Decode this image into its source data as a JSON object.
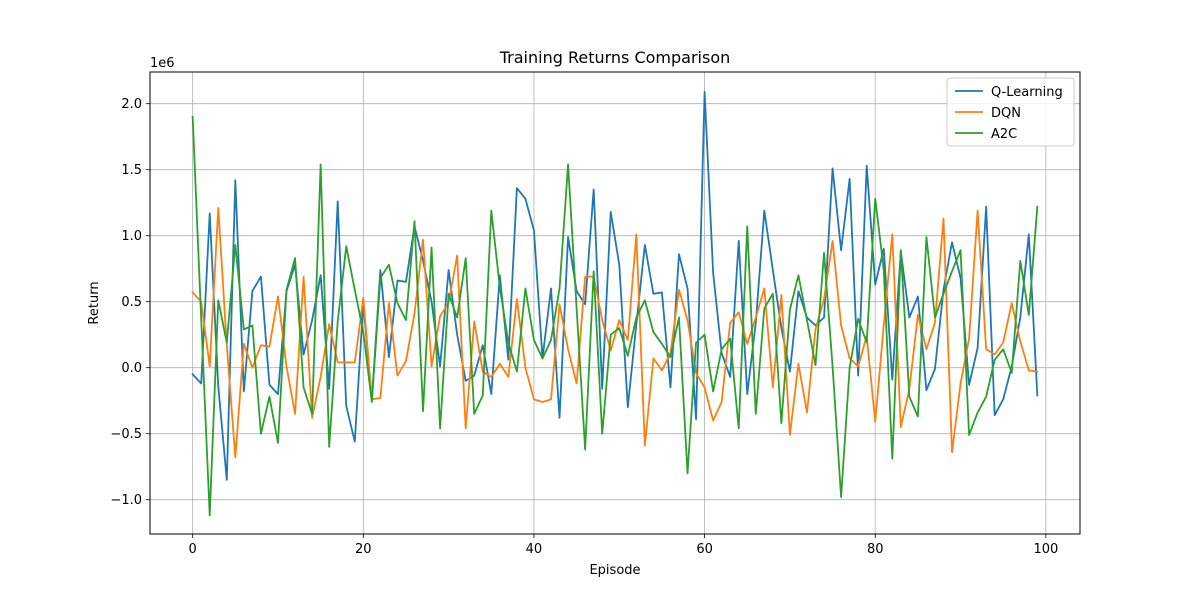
{
  "chart_data": {
    "type": "line",
    "title": "Training Returns Comparison",
    "xlabel": "Episode",
    "ylabel": "Return",
    "y_scale_note": "1e6",
    "xlim": [
      -5,
      104
    ],
    "ylim": [
      -1.26,
      2.24
    ],
    "xticks": [
      0,
      20,
      40,
      60,
      80,
      100
    ],
    "yticks": [
      -1.0,
      -0.5,
      0.0,
      0.5,
      1.0,
      1.5,
      2.0
    ],
    "ytick_labels": [
      "−1.0",
      "−0.5",
      "0.0",
      "0.5",
      "1.0",
      "1.5",
      "2.0"
    ],
    "grid": true,
    "legend_position": "upper right",
    "series": [
      {
        "name": "Q-Learning",
        "color": "#1f77b4",
        "values": [
          -0.05,
          -0.12,
          1.17,
          -0.14,
          -0.85,
          1.42,
          -0.18,
          0.58,
          0.69,
          -0.13,
          -0.2,
          0.58,
          0.78,
          0.1,
          0.36,
          0.7,
          -0.16,
          1.26,
          -0.29,
          -0.56,
          0.49,
          -0.25,
          0.74,
          0.08,
          0.66,
          0.65,
          1.07,
          0.81,
          0.5,
          0.01,
          0.74,
          0.25,
          -0.1,
          -0.06,
          0.17,
          -0.2,
          0.7,
          0.06,
          1.36,
          1.28,
          1.04,
          0.07,
          0.6,
          -0.38,
          0.99,
          0.58,
          0.48,
          1.35,
          -0.16,
          1.18,
          0.78,
          -0.3,
          0.33,
          0.93,
          0.56,
          0.57,
          -0.15,
          0.86,
          0.6,
          -0.39,
          2.09,
          0.72,
          0.11,
          -0.07,
          0.96,
          -0.2,
          0.34,
          1.19,
          0.74,
          0.3,
          -0.03,
          0.58,
          0.38,
          0.32,
          0.38,
          1.51,
          0.89,
          1.43,
          -0.06,
          1.53,
          0.63,
          0.9,
          -0.09,
          0.88,
          0.38,
          0.54,
          -0.17,
          -0.01,
          0.59,
          0.95,
          0.68,
          -0.13,
          0.15,
          1.22,
          -0.36,
          -0.24,
          0.01,
          0.38,
          1.01,
          -0.21
        ]
      },
      {
        "name": "DQN",
        "color": "#ff7f0e",
        "values": [
          0.57,
          0.5,
          0.01,
          1.21,
          0.17,
          -0.68,
          0.18,
          0.0,
          0.17,
          0.16,
          0.54,
          0.01,
          -0.35,
          0.69,
          -0.38,
          -0.07,
          0.33,
          0.04,
          0.04,
          0.04,
          0.53,
          -0.24,
          -0.23,
          0.49,
          -0.06,
          0.05,
          0.41,
          0.97,
          0.01,
          0.39,
          0.49,
          0.85,
          -0.46,
          0.35,
          -0.03,
          -0.07,
          0.03,
          -0.07,
          0.52,
          0.0,
          -0.24,
          -0.26,
          -0.24,
          0.48,
          0.14,
          -0.12,
          0.69,
          0.69,
          0.36,
          0.13,
          0.36,
          0.21,
          1.01,
          -0.59,
          0.07,
          -0.02,
          0.11,
          0.59,
          0.36,
          -0.04,
          -0.15,
          -0.4,
          -0.26,
          0.34,
          0.42,
          0.18,
          0.38,
          0.6,
          -0.15,
          0.55,
          -0.51,
          0.03,
          -0.34,
          0.29,
          0.52,
          0.96,
          0.32,
          0.07,
          0.01,
          0.24,
          -0.41,
          0.32,
          1.01,
          -0.45,
          -0.16,
          0.4,
          0.14,
          0.34,
          1.13,
          -0.64,
          -0.12,
          0.22,
          1.19,
          0.14,
          0.1,
          0.19,
          0.49,
          0.2,
          -0.02,
          -0.03
        ]
      },
      {
        "name": "A2C",
        "color": "#2ca02c",
        "values": [
          1.9,
          0.37,
          -1.12,
          0.51,
          0.19,
          0.93,
          0.29,
          0.32,
          -0.5,
          -0.22,
          -0.57,
          0.59,
          0.83,
          -0.15,
          -0.35,
          1.54,
          -0.6,
          0.35,
          0.92,
          0.59,
          0.27,
          -0.26,
          0.68,
          0.78,
          0.49,
          0.36,
          1.11,
          -0.33,
          0.91,
          -0.46,
          0.56,
          0.38,
          0.83,
          -0.35,
          -0.21,
          1.19,
          0.61,
          0.19,
          -0.03,
          0.6,
          0.21,
          0.07,
          0.21,
          0.6,
          1.54,
          0.45,
          -0.62,
          0.73,
          -0.5,
          0.25,
          0.3,
          0.09,
          0.38,
          0.51,
          0.27,
          0.18,
          0.08,
          0.38,
          -0.8,
          0.19,
          0.25,
          -0.18,
          0.14,
          0.22,
          -0.46,
          1.07,
          -0.35,
          0.45,
          0.56,
          -0.42,
          0.44,
          0.7,
          0.36,
          0.02,
          0.87,
          0.01,
          -0.98,
          0.0,
          0.37,
          0.19,
          1.28,
          0.74,
          -0.69,
          0.89,
          -0.22,
          -0.37,
          0.99,
          0.38,
          0.56,
          0.73,
          0.89,
          -0.51,
          -0.34,
          -0.22,
          0.06,
          0.14,
          -0.04,
          0.81,
          0.4,
          1.22
        ]
      }
    ]
  }
}
